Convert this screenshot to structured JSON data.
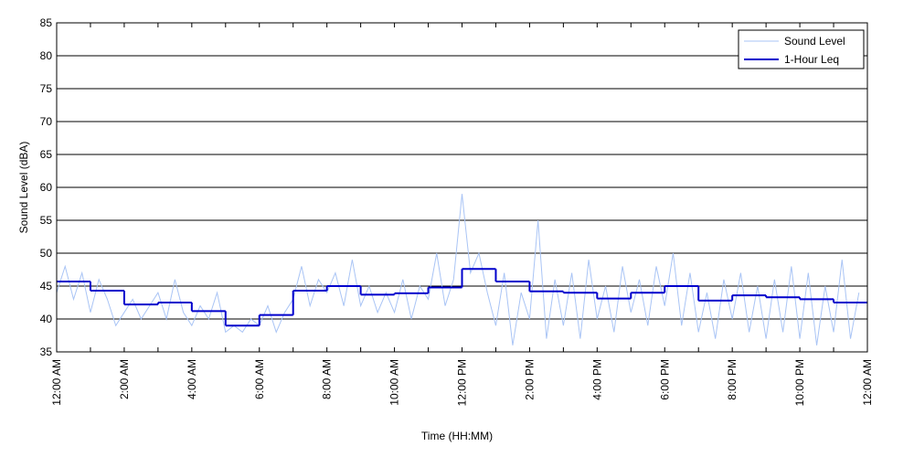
{
  "chart_data": {
    "type": "line",
    "xlabel": "Time (HH:MM)",
    "ylabel": "Sound Level (dBA)",
    "xlim": [
      0,
      24
    ],
    "ylim": [
      35,
      85
    ],
    "xticks": [
      {
        "value": 0,
        "label": "12:00 AM"
      },
      {
        "value": 2,
        "label": "2:00 AM"
      },
      {
        "value": 4,
        "label": "4:00 AM"
      },
      {
        "value": 6,
        "label": "6:00 AM"
      },
      {
        "value": 8,
        "label": "8:00 AM"
      },
      {
        "value": 10,
        "label": "10:00 AM"
      },
      {
        "value": 12,
        "label": "12:00 PM"
      },
      {
        "value": 14,
        "label": "2:00 PM"
      },
      {
        "value": 16,
        "label": "4:00 PM"
      },
      {
        "value": 18,
        "label": "6:00 PM"
      },
      {
        "value": 20,
        "label": "8:00 PM"
      },
      {
        "value": 22,
        "label": "10:00 PM"
      },
      {
        "value": 24,
        "label": "12:00 AM"
      }
    ],
    "xminorticks": [
      1,
      3,
      5,
      7,
      9,
      11,
      13,
      15,
      17,
      19,
      21,
      23
    ],
    "yticks": [
      35,
      40,
      45,
      50,
      55,
      60,
      65,
      70,
      75,
      80,
      85
    ],
    "grid": true,
    "legend": "upper right",
    "series": [
      {
        "name": "Sound Level",
        "color": "#a9c4f5",
        "x": [
          0,
          0.25,
          0.5,
          0.75,
          1,
          1.25,
          1.5,
          1.75,
          2,
          2.25,
          2.5,
          2.75,
          3,
          3.25,
          3.5,
          3.75,
          4,
          4.25,
          4.5,
          4.75,
          5,
          5.25,
          5.5,
          5.75,
          6,
          6.25,
          6.5,
          6.75,
          7,
          7.25,
          7.5,
          7.75,
          8,
          8.25,
          8.5,
          8.75,
          9,
          9.25,
          9.5,
          9.75,
          10,
          10.25,
          10.5,
          10.75,
          11,
          11.25,
          11.5,
          11.75,
          12,
          12.25,
          12.5,
          12.75,
          13,
          13.25,
          13.5,
          13.75,
          14,
          14.25,
          14.5,
          14.75,
          15,
          15.25,
          15.5,
          15.75,
          16,
          16.25,
          16.5,
          16.75,
          17,
          17.25,
          17.5,
          17.75,
          18,
          18.25,
          18.5,
          18.75,
          19,
          19.25,
          19.5,
          19.75,
          20,
          20.25,
          20.5,
          20.75,
          21,
          21.25,
          21.5,
          21.75,
          22,
          22.25,
          22.5,
          22.75,
          23,
          23.25,
          23.5,
          23.75
        ],
        "values": [
          44,
          48,
          43,
          47,
          41,
          46,
          43,
          39,
          41,
          43,
          40,
          42,
          44,
          40,
          46,
          41,
          39,
          42,
          40,
          44,
          38,
          39,
          38,
          40,
          39,
          42,
          38,
          41,
          43,
          48,
          42,
          46,
          44,
          47,
          42,
          49,
          42,
          45,
          41,
          44,
          41,
          46,
          40,
          45,
          43,
          50,
          42,
          46,
          59,
          47,
          50,
          44,
          39,
          47,
          36,
          44,
          40,
          55,
          37,
          46,
          39,
          47,
          37,
          49,
          40,
          45,
          38,
          48,
          41,
          46,
          39,
          48,
          42,
          50,
          39,
          47,
          38,
          44,
          37,
          46,
          40,
          47,
          38,
          45,
          37,
          46,
          38,
          48,
          37,
          47,
          36,
          45,
          38,
          49,
          37,
          44
        ]
      },
      {
        "name": "1-Hour Leq",
        "color": "#0000cc",
        "step": true,
        "x": [
          0,
          1,
          2,
          3,
          4,
          5,
          6,
          7,
          8,
          9,
          10,
          11,
          12,
          13,
          14,
          15,
          16,
          17,
          18,
          19,
          20,
          21,
          22,
          23
        ],
        "values": [
          45.7,
          44.3,
          42.2,
          42.5,
          41.2,
          39.0,
          40.6,
          44.3,
          45.0,
          43.7,
          43.9,
          44.8,
          47.6,
          45.7,
          44.2,
          44.0,
          43.1,
          44.0,
          45.0,
          42.8,
          43.6,
          43.3,
          43.0,
          42.5
        ]
      }
    ]
  }
}
